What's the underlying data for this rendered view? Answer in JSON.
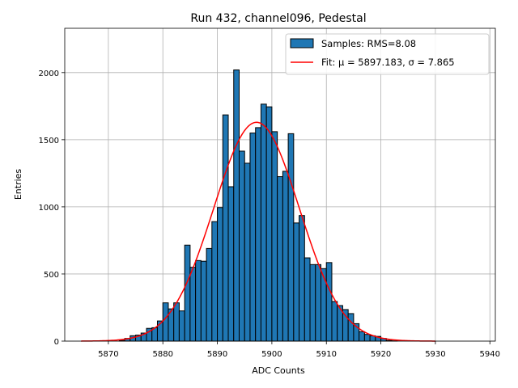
{
  "chart_data": {
    "type": "bar",
    "title": "Run 432, channel096, Pedestal",
    "xlabel": "ADC Counts",
    "ylabel": "Entries",
    "xlim": [
      5862,
      5941
    ],
    "ylim": [
      0,
      2330
    ],
    "xticks": [
      5870,
      5880,
      5890,
      5900,
      5910,
      5920,
      5930,
      5940
    ],
    "yticks": [
      0,
      500,
      1000,
      1500,
      2000
    ],
    "grid": true,
    "legend_position": "upper-right",
    "histogram": {
      "name": "Samples: RMS=8.08",
      "bin_width": 1,
      "bin_starts": [
        5872,
        5873,
        5874,
        5875,
        5876,
        5877,
        5878,
        5879,
        5880,
        5881,
        5882,
        5883,
        5884,
        5885,
        5886,
        5887,
        5888,
        5889,
        5890,
        5891,
        5892,
        5893,
        5894,
        5895,
        5896,
        5897,
        5898,
        5899,
        5900,
        5901,
        5902,
        5903,
        5904,
        5905,
        5906,
        5907,
        5908,
        5909,
        5910,
        5911,
        5912,
        5913,
        5914,
        5915,
        5916,
        5917,
        5918,
        5919,
        5920,
        5921,
        5922
      ],
      "counts": [
        5,
        20,
        40,
        45,
        60,
        95,
        100,
        150,
        285,
        240,
        285,
        225,
        715,
        550,
        600,
        595,
        690,
        890,
        995,
        1685,
        1150,
        2020,
        1415,
        1325,
        1550,
        1590,
        1765,
        1745,
        1560,
        1225,
        1265,
        1545,
        880,
        935,
        620,
        570,
        570,
        540,
        585,
        295,
        265,
        235,
        205,
        130,
        70,
        50,
        40,
        35,
        20,
        5,
        2
      ],
      "color": "#1f77b4",
      "edge_color": "#000000"
    },
    "fit": {
      "name": "Fit: μ = 5897.183, σ = 7.865",
      "mu": 5897.183,
      "sigma": 7.865,
      "amplitude": 1630,
      "x_range": [
        5865,
        5930
      ],
      "color": "#ff0000"
    }
  }
}
